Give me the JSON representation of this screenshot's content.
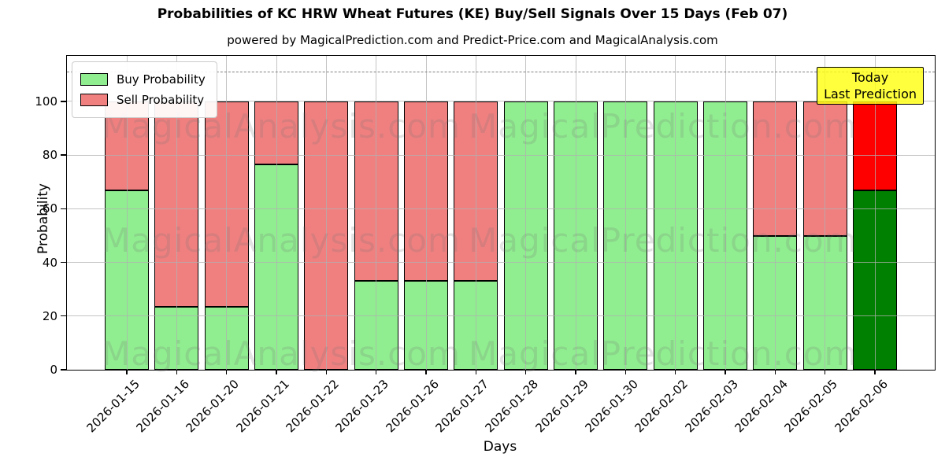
{
  "header": {
    "title": "Probabilities of KC HRW Wheat Futures (KE) Buy/Sell Signals Over 15 Days (Feb 07)",
    "subtitle": "powered by MagicalPrediction.com and Predict-Price.com and MagicalAnalysis.com"
  },
  "legend": {
    "items": [
      {
        "label": "Buy Probability",
        "color": "#90ee90"
      },
      {
        "label": "Sell Probability",
        "color": "#f08080"
      }
    ]
  },
  "annotation": {
    "line1": "Today",
    "line2": "Last Prediction",
    "bg": "#ffff33"
  },
  "axes": {
    "x_label": "Days",
    "y_label": "Probability",
    "y_ticks": [
      0,
      20,
      40,
      60,
      80,
      100
    ]
  },
  "watermarks": {
    "texts": [
      "MagicalAnalysis.com",
      "MagicalPrediction.com"
    ]
  },
  "chart_data": {
    "type": "bar",
    "stacked": true,
    "title": "Probabilities of KC HRW Wheat Futures (KE) Buy/Sell Signals Over 15 Days (Feb 07)",
    "xlabel": "Days",
    "ylabel": "Probability",
    "ylim": [
      0,
      117
    ],
    "grid": true,
    "legend_position": "upper left",
    "dashed_line_y": 111,
    "categories": [
      "2026-01-15",
      "2026-01-16",
      "2026-01-20",
      "2026-01-21",
      "2026-01-22",
      "2026-01-23",
      "2026-01-26",
      "2026-01-27",
      "2026-01-28",
      "2026-01-29",
      "2026-01-30",
      "2026-02-02",
      "2026-02-03",
      "2026-02-04",
      "2026-02-05",
      "2026-02-06"
    ],
    "series": [
      {
        "name": "Buy Probability",
        "color": "#90ee90",
        "values": [
          67,
          23.5,
          23.5,
          76.5,
          0,
          33,
          33,
          33,
          100,
          100,
          100,
          100,
          100,
          50,
          50,
          67
        ]
      },
      {
        "name": "Sell Probability",
        "color": "#f08080",
        "values": [
          33,
          76.5,
          76.5,
          23.5,
          100,
          67,
          67,
          67,
          0,
          0,
          0,
          0,
          0,
          50,
          50,
          33
        ]
      }
    ],
    "highlight_last_bar": {
      "index": 15,
      "buy_color": "#008000",
      "sell_color": "#ff0000"
    }
  }
}
